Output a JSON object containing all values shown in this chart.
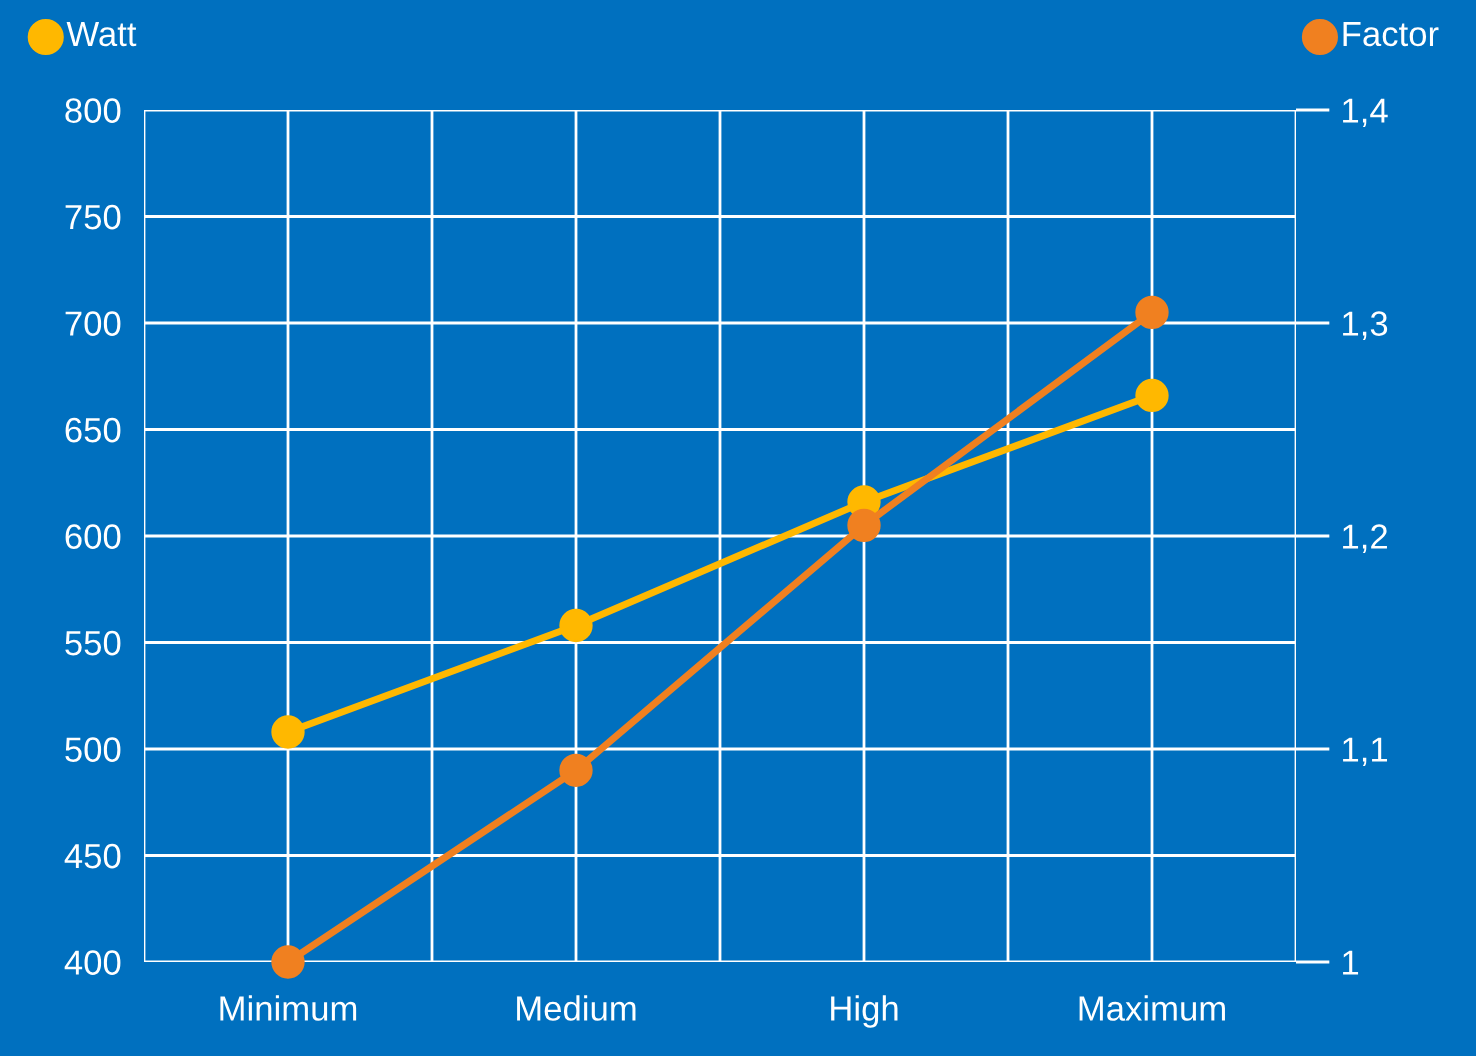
{
  "chart_data": {
    "type": "line",
    "categories": [
      "Minimum",
      "Medium",
      "High",
      "Maximum"
    ],
    "series": [
      {
        "name": "Watt",
        "color": "#ffb800",
        "values": [
          508,
          558,
          616,
          666
        ]
      },
      {
        "name": "Factor",
        "color": "#f08020",
        "axis": "y2",
        "values": [
          1.0,
          1.09,
          1.205,
          1.305
        ]
      }
    ],
    "ylim": [
      400,
      800
    ],
    "yticks": [
      400,
      450,
      500,
      550,
      600,
      650,
      700,
      750,
      800
    ],
    "y2lim": [
      1,
      1.4
    ],
    "y2ticks": [
      1,
      {
        "value": 1.1,
        "label": "1,1"
      },
      {
        "value": 1.2,
        "label": "1,2"
      },
      {
        "value": 1.3,
        "label": "1,3"
      },
      {
        "value": 1.4,
        "label": "1,4"
      }
    ],
    "grid": true,
    "legend": "top",
    "marker": "circle",
    "line_style": "solid"
  }
}
